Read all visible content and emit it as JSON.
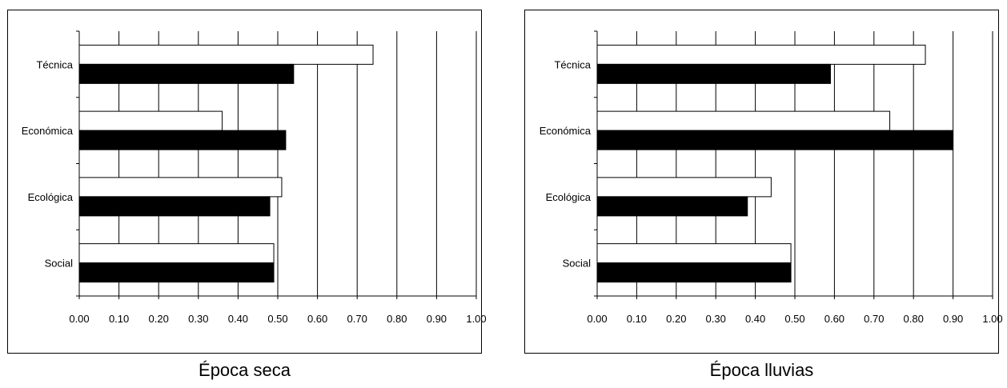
{
  "chart_data": [
    {
      "type": "bar",
      "orientation": "horizontal",
      "caption": "Época seca",
      "categories": [
        "Técnica",
        "Económica",
        "Ecológica",
        "Social"
      ],
      "series": [
        {
          "values": [
            0.74,
            0.36,
            0.51,
            0.49
          ],
          "color": "#ffffff"
        },
        {
          "values": [
            0.54,
            0.52,
            0.48,
            0.49
          ],
          "color": "#000000"
        }
      ],
      "xlim": [
        0,
        1
      ],
      "xticks": [
        "0.00",
        "0.10",
        "0.20",
        "0.30",
        "0.40",
        "0.50",
        "0.60",
        "0.70",
        "0.80",
        "0.90",
        "1.00"
      ],
      "grid": true
    },
    {
      "type": "bar",
      "orientation": "horizontal",
      "caption": "Época lluvias",
      "categories": [
        "Técnica",
        "Económica",
        "Ecológica",
        "Social"
      ],
      "series": [
        {
          "values": [
            0.83,
            0.74,
            0.44,
            0.49
          ],
          "color": "#ffffff"
        },
        {
          "values": [
            0.59,
            0.9,
            0.38,
            0.49
          ],
          "color": "#000000"
        }
      ],
      "xlim": [
        0,
        1
      ],
      "xticks": [
        "0.00",
        "0.10",
        "0.20",
        "0.30",
        "0.40",
        "0.50",
        "0.60",
        "0.70",
        "0.80",
        "0.90",
        "1.00"
      ],
      "grid": true
    }
  ]
}
